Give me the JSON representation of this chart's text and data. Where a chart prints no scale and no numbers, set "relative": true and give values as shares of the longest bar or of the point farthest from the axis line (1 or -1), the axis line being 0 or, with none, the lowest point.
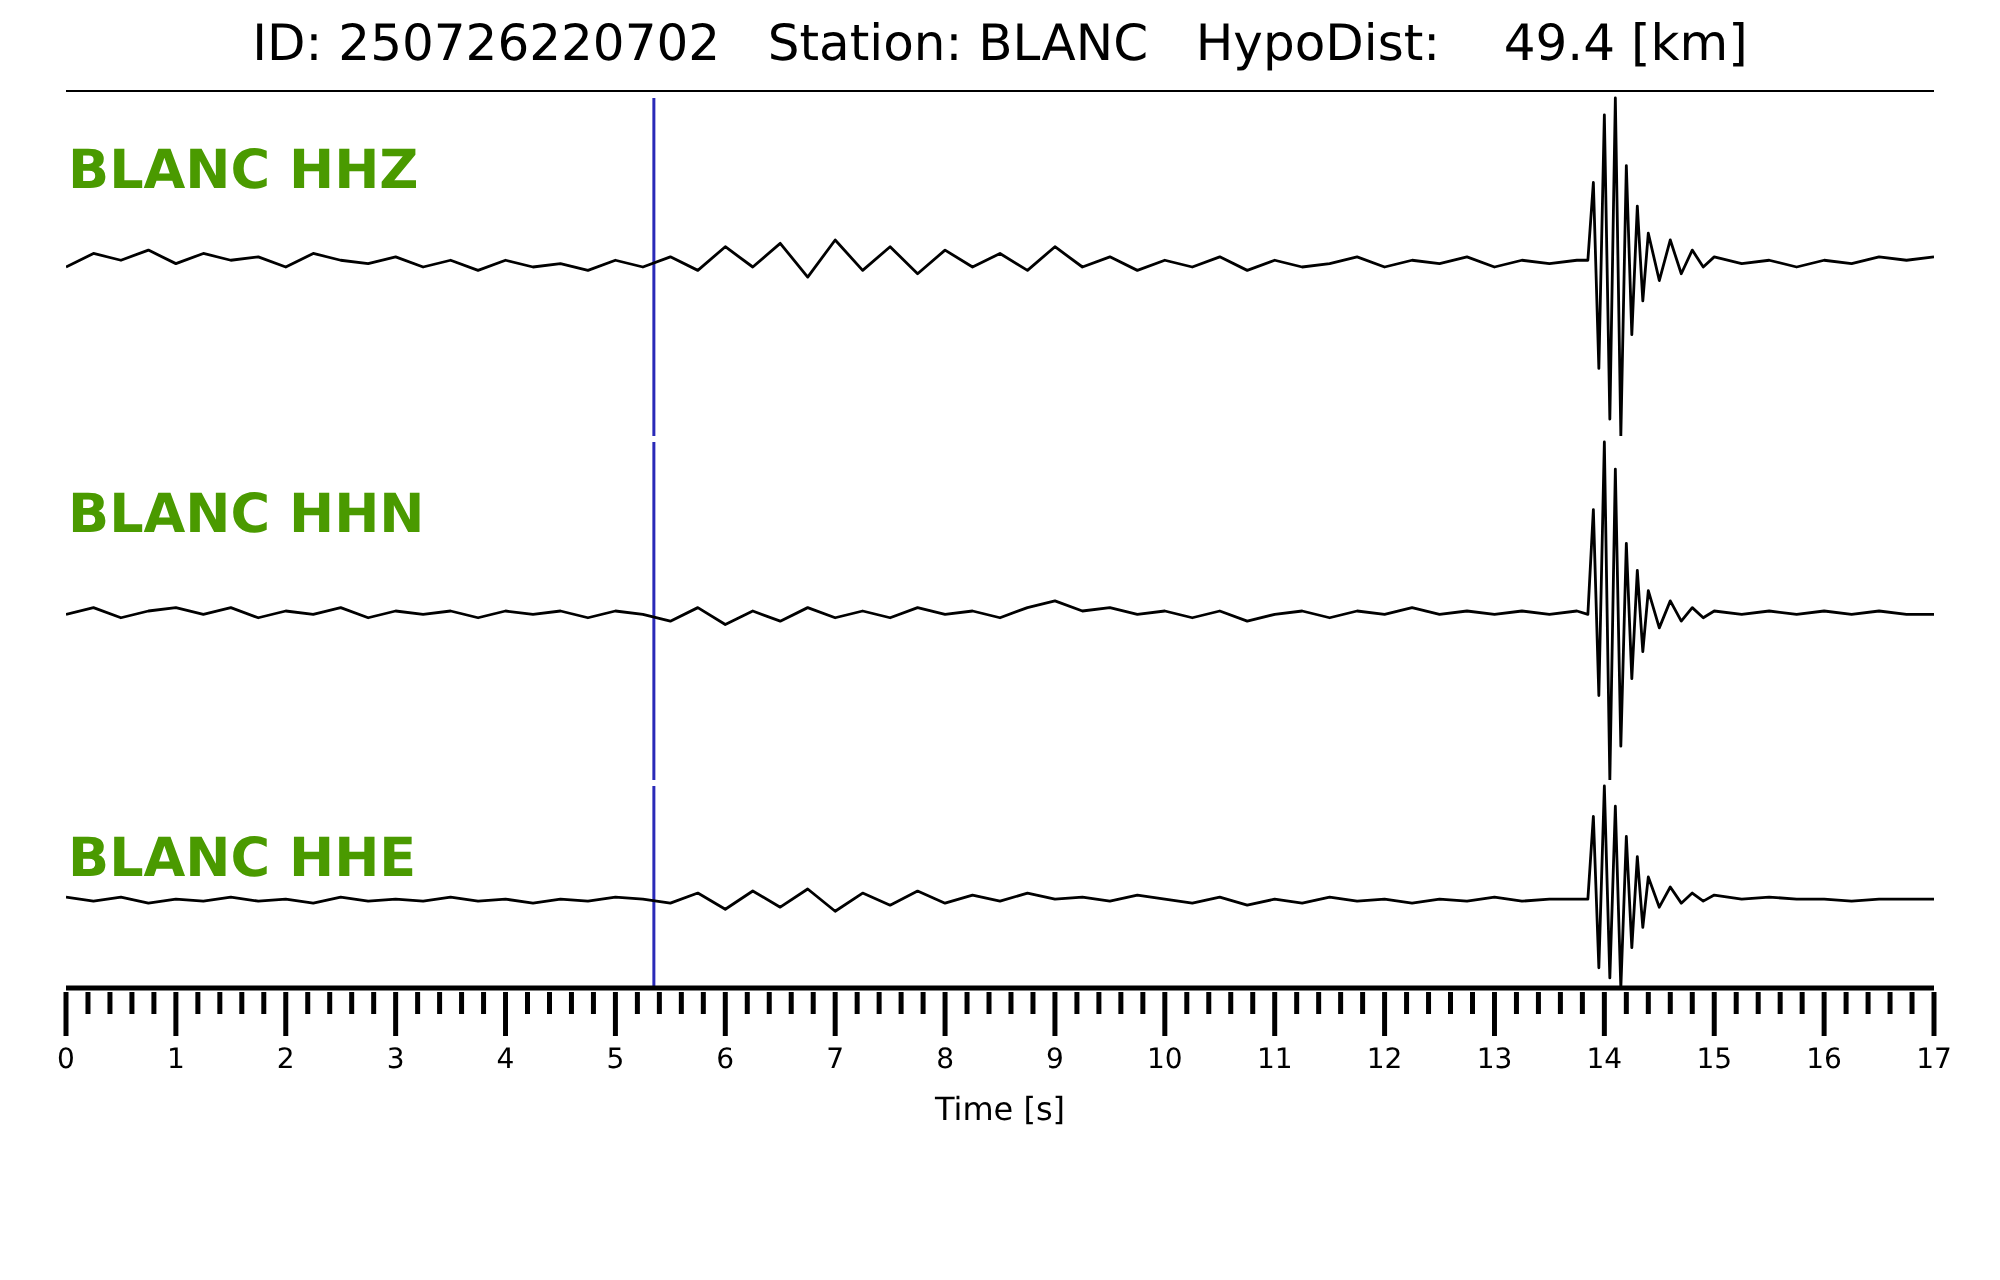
{
  "chart_data": [
    {
      "type": "line",
      "title": "ID: 250726220702   Station: BLANC   HypoDist:    49.4 [km]",
      "relative": true,
      "xlim": [
        0,
        17
      ],
      "annotations": [
        "BLANC HHZ"
      ],
      "ref_lines": [
        {
          "axis": "x",
          "value": 5.35,
          "color": "#2a2ab8"
        }
      ],
      "x": [
        0,
        0.25,
        0.5,
        0.75,
        1,
        1.25,
        1.5,
        1.75,
        2,
        2.25,
        2.5,
        2.75,
        3,
        3.25,
        3.5,
        3.75,
        4,
        4.25,
        4.5,
        4.75,
        5,
        5.25,
        5.5,
        5.75,
        6,
        6.25,
        6.5,
        6.75,
        7,
        7.25,
        7.5,
        7.75,
        8,
        8.25,
        8.5,
        8.75,
        9,
        9.25,
        9.5,
        9.75,
        10,
        10.25,
        10.5,
        10.75,
        11,
        11.25,
        11.5,
        11.75,
        12,
        12.25,
        12.5,
        12.75,
        13,
        13.25,
        13.5,
        13.75,
        13.85,
        13.9,
        13.95,
        14,
        14.05,
        14.1,
        14.15,
        14.2,
        14.25,
        14.3,
        14.35,
        14.4,
        14.5,
        14.6,
        14.7,
        14.8,
        14.9,
        15,
        15.25,
        15.5,
        15.75,
        16,
        16.25,
        16.5,
        16.75,
        17
      ],
      "series": [
        {
          "color": "#000000",
          "values": [
            0.5,
            0.54,
            0.52,
            0.55,
            0.51,
            0.54,
            0.52,
            0.53,
            0.5,
            0.54,
            0.52,
            0.51,
            0.53,
            0.5,
            0.52,
            0.49,
            0.52,
            0.5,
            0.51,
            0.49,
            0.52,
            0.5,
            0.53,
            0.49,
            0.56,
            0.5,
            0.57,
            0.47,
            0.58,
            0.49,
            0.56,
            0.48,
            0.55,
            0.5,
            0.54,
            0.49,
            0.56,
            0.5,
            0.53,
            0.49,
            0.52,
            0.5,
            0.53,
            0.49,
            0.52,
            0.5,
            0.51,
            0.53,
            0.5,
            0.52,
            0.51,
            0.53,
            0.5,
            0.52,
            0.51,
            0.52,
            0.52,
            0.75,
            0.2,
            0.95,
            0.05,
            1,
            0,
            0.8,
            0.3,
            0.68,
            0.4,
            0.6,
            0.46,
            0.58,
            0.48,
            0.55,
            0.5,
            0.53,
            0.51,
            0.52,
            0.5,
            0.52,
            0.51,
            0.53,
            0.52,
            0.53
          ]
        }
      ]
    },
    {
      "type": "line",
      "relative": true,
      "xlim": [
        0,
        17
      ],
      "annotations": [
        "BLANC HHN"
      ],
      "ref_lines": [
        {
          "axis": "x",
          "value": 5.35,
          "color": "#2a2ab8"
        }
      ],
      "x": [
        0,
        0.25,
        0.5,
        0.75,
        1,
        1.25,
        1.5,
        1.75,
        2,
        2.25,
        2.5,
        2.75,
        3,
        3.25,
        3.5,
        3.75,
        4,
        4.25,
        4.5,
        4.75,
        5,
        5.25,
        5.5,
        5.75,
        6,
        6.25,
        6.5,
        6.75,
        7,
        7.25,
        7.5,
        7.75,
        8,
        8.25,
        8.5,
        8.75,
        9,
        9.25,
        9.5,
        9.75,
        10,
        10.25,
        10.5,
        10.75,
        11,
        11.25,
        11.5,
        11.75,
        12,
        12.25,
        12.5,
        12.75,
        13,
        13.25,
        13.5,
        13.75,
        13.85,
        13.9,
        13.95,
        14,
        14.05,
        14.1,
        14.15,
        14.2,
        14.25,
        14.3,
        14.35,
        14.4,
        14.5,
        14.6,
        14.7,
        14.8,
        14.9,
        15,
        15.25,
        15.5,
        15.75,
        16,
        16.25,
        16.5,
        16.75,
        17
      ],
      "series": [
        {
          "color": "#000000",
          "values": [
            0.49,
            0.51,
            0.48,
            0.5,
            0.51,
            0.49,
            0.51,
            0.48,
            0.5,
            0.49,
            0.51,
            0.48,
            0.5,
            0.49,
            0.5,
            0.48,
            0.5,
            0.49,
            0.5,
            0.48,
            0.5,
            0.49,
            0.47,
            0.51,
            0.46,
            0.5,
            0.47,
            0.51,
            0.48,
            0.5,
            0.48,
            0.51,
            0.49,
            0.5,
            0.48,
            0.51,
            0.53,
            0.5,
            0.51,
            0.49,
            0.5,
            0.48,
            0.5,
            0.47,
            0.49,
            0.5,
            0.48,
            0.5,
            0.49,
            0.51,
            0.49,
            0.5,
            0.49,
            0.5,
            0.49,
            0.5,
            0.49,
            0.8,
            0.25,
            1,
            0,
            0.92,
            0.1,
            0.7,
            0.3,
            0.62,
            0.38,
            0.56,
            0.45,
            0.53,
            0.47,
            0.51,
            0.48,
            0.5,
            0.49,
            0.5,
            0.49,
            0.5,
            0.49,
            0.5,
            0.49,
            0.49
          ]
        }
      ]
    },
    {
      "type": "line",
      "relative": true,
      "xlim": [
        0,
        17
      ],
      "xlabel": "Time [s]",
      "annotations": [
        "BLANC HHE"
      ],
      "ref_lines": [
        {
          "axis": "x",
          "value": 5.35,
          "color": "#2a2ab8"
        }
      ],
      "xticks": [
        0,
        {
          "value": 0.2,
          "label": null
        },
        {
          "value": 0.4,
          "label": null
        },
        {
          "value": 0.6,
          "label": null
        },
        {
          "value": 0.8,
          "label": null
        },
        1,
        {
          "value": 1.2,
          "label": null
        },
        {
          "value": 1.4,
          "label": null
        },
        {
          "value": 1.6,
          "label": null
        },
        {
          "value": 1.8,
          "label": null
        },
        2,
        {
          "value": 2.2,
          "label": null
        },
        {
          "value": 2.4,
          "label": null
        },
        {
          "value": 2.6,
          "label": null
        },
        {
          "value": 2.8,
          "label": null
        },
        3,
        {
          "value": 3.2,
          "label": null
        },
        {
          "value": 3.4,
          "label": null
        },
        {
          "value": 3.6,
          "label": null
        },
        {
          "value": 3.8,
          "label": null
        },
        4,
        {
          "value": 4.2,
          "label": null
        },
        {
          "value": 4.4,
          "label": null
        },
        {
          "value": 4.6,
          "label": null
        },
        {
          "value": 4.8,
          "label": null
        },
        5,
        {
          "value": 5.2,
          "label": null
        },
        {
          "value": 5.4,
          "label": null
        },
        {
          "value": 5.6,
          "label": null
        },
        {
          "value": 5.8,
          "label": null
        },
        6,
        {
          "value": 6.2,
          "label": null
        },
        {
          "value": 6.4,
          "label": null
        },
        {
          "value": 6.6,
          "label": null
        },
        {
          "value": 6.8,
          "label": null
        },
        7,
        {
          "value": 7.2,
          "label": null
        },
        {
          "value": 7.4,
          "label": null
        },
        {
          "value": 7.6,
          "label": null
        },
        {
          "value": 7.8,
          "label": null
        },
        8,
        {
          "value": 8.2,
          "label": null
        },
        {
          "value": 8.4,
          "label": null
        },
        {
          "value": 8.6,
          "label": null
        },
        {
          "value": 8.8,
          "label": null
        },
        9,
        {
          "value": 9.2,
          "label": null
        },
        {
          "value": 9.4,
          "label": null
        },
        {
          "value": 9.6,
          "label": null
        },
        {
          "value": 9.8,
          "label": null
        },
        10,
        {
          "value": 10.2,
          "label": null
        },
        {
          "value": 10.4,
          "label": null
        },
        {
          "value": 10.6,
          "label": null
        },
        {
          "value": 10.8,
          "label": null
        },
        11,
        {
          "value": 11.2,
          "label": null
        },
        {
          "value": 11.4,
          "label": null
        },
        {
          "value": 11.6,
          "label": null
        },
        {
          "value": 11.8,
          "label": null
        },
        12,
        {
          "value": 12.2,
          "label": null
        },
        {
          "value": 12.4,
          "label": null
        },
        {
          "value": 12.6,
          "label": null
        },
        {
          "value": 12.8,
          "label": null
        },
        13,
        {
          "value": 13.2,
          "label": null
        },
        {
          "value": 13.4,
          "label": null
        },
        {
          "value": 13.6,
          "label": null
        },
        {
          "value": 13.8,
          "label": null
        },
        14,
        {
          "value": 14.2,
          "label": null
        },
        {
          "value": 14.4,
          "label": null
        },
        {
          "value": 14.6,
          "label": null
        },
        {
          "value": 14.8,
          "label": null
        },
        15,
        {
          "value": 15.2,
          "label": null
        },
        {
          "value": 15.4,
          "label": null
        },
        {
          "value": 15.6,
          "label": null
        },
        {
          "value": 15.8,
          "label": null
        },
        16,
        {
          "value": 16.2,
          "label": null
        },
        {
          "value": 16.4,
          "label": null
        },
        {
          "value": 16.6,
          "label": null
        },
        {
          "value": 16.8,
          "label": null
        },
        17
      ],
      "x": [
        0,
        0.25,
        0.5,
        0.75,
        1,
        1.25,
        1.5,
        1.75,
        2,
        2.25,
        2.5,
        2.75,
        3,
        3.25,
        3.5,
        3.75,
        4,
        4.25,
        4.5,
        4.75,
        5,
        5.25,
        5.5,
        5.75,
        6,
        6.25,
        6.5,
        6.75,
        7,
        7.25,
        7.5,
        7.75,
        8,
        8.25,
        8.5,
        8.75,
        9,
        9.25,
        9.5,
        9.75,
        10,
        10.25,
        10.5,
        10.75,
        11,
        11.25,
        11.5,
        11.75,
        12,
        12.25,
        12.5,
        12.75,
        13,
        13.25,
        13.5,
        13.75,
        13.85,
        13.9,
        13.95,
        14,
        14.05,
        14.1,
        14.15,
        14.2,
        14.25,
        14.3,
        14.35,
        14.4,
        14.5,
        14.6,
        14.7,
        14.8,
        14.9,
        15,
        15.25,
        15.5,
        15.75,
        16,
        16.25,
        16.5,
        16.75,
        17
      ],
      "series": [
        {
          "color": "#000000",
          "values": [
            0.45,
            0.43,
            0.45,
            0.42,
            0.44,
            0.43,
            0.45,
            0.43,
            0.44,
            0.42,
            0.45,
            0.43,
            0.44,
            0.43,
            0.45,
            0.43,
            0.44,
            0.42,
            0.44,
            0.43,
            0.45,
            0.44,
            0.42,
            0.47,
            0.39,
            0.48,
            0.4,
            0.49,
            0.38,
            0.47,
            0.41,
            0.48,
            0.42,
            0.46,
            0.43,
            0.47,
            0.44,
            0.45,
            0.43,
            0.46,
            0.44,
            0.42,
            0.45,
            0.41,
            0.44,
            0.42,
            0.45,
            0.43,
            0.44,
            0.42,
            0.44,
            0.43,
            0.45,
            0.43,
            0.44,
            0.44,
            0.44,
            0.85,
            0.1,
            1,
            0.05,
            0.9,
            0,
            0.75,
            0.2,
            0.65,
            0.3,
            0.55,
            0.4,
            0.5,
            0.42,
            0.47,
            0.43,
            0.46,
            0.44,
            0.45,
            0.44,
            0.44,
            0.43,
            0.44,
            0.44,
            0.44
          ]
        }
      ]
    }
  ]
}
